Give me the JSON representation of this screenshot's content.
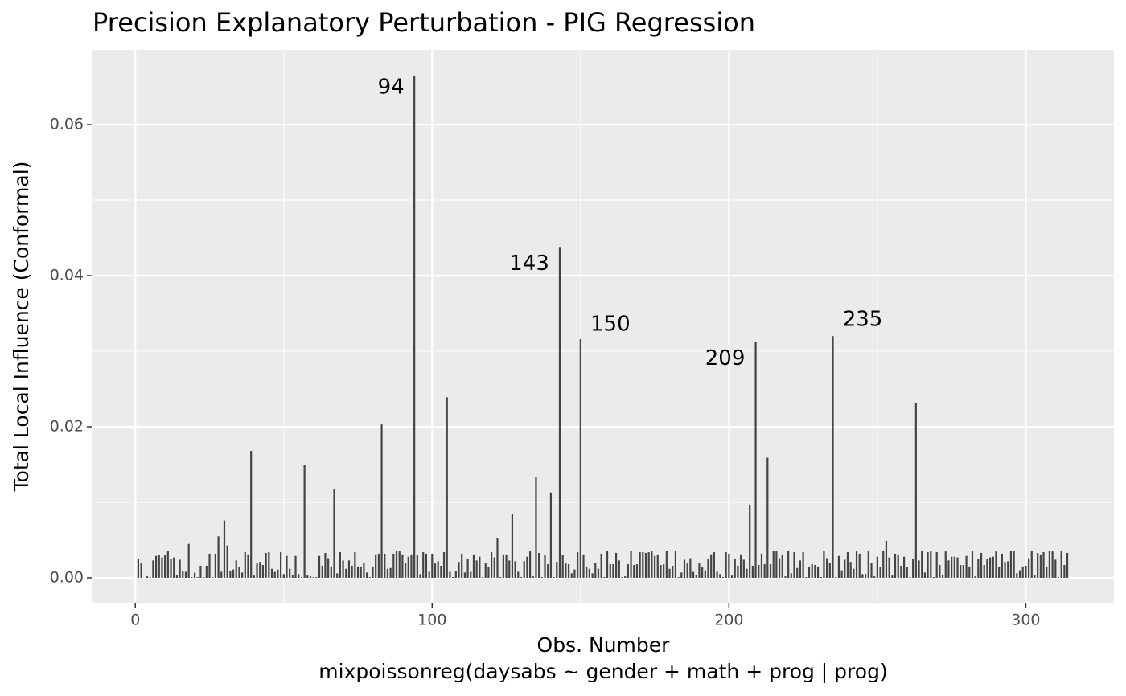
{
  "chart_data": {
    "type": "bar",
    "title": "Precision Explanatory Perturbation - PIG Regression",
    "xlabel": "Obs. Number",
    "caption": "mixpoissonreg(daysabs ~ gender + math + prog | prog)",
    "ylabel": "Total Local Influence (Conformal)",
    "color": "#444444",
    "grid": true,
    "xlim": [
      -14.7,
      329.7
    ],
    "ylim": [
      -0.0033,
      0.0699
    ],
    "xticks": [
      0,
      100,
      200,
      300
    ],
    "yticks": [
      {
        "value": 0,
        "label": "0.00"
      },
      {
        "value": 0.02,
        "label": "0.02"
      },
      {
        "value": 0.04,
        "label": "0.04"
      },
      {
        "value": 0.06,
        "label": "0.06"
      }
    ],
    "xminor_ticks": [
      50,
      150,
      250
    ],
    "yminor_ticks": [
      0.01,
      0.03,
      0.05
    ],
    "annotations": [
      {
        "x": 94,
        "text": "94"
      },
      {
        "x": 143,
        "text": "143"
      },
      {
        "x": 150,
        "text": "150"
      },
      {
        "x": 209,
        "text": "209"
      },
      {
        "x": 235,
        "text": "235"
      }
    ],
    "x": [
      1,
      2,
      3,
      4,
      5,
      6,
      7,
      8,
      9,
      10,
      11,
      12,
      13,
      14,
      15,
      16,
      17,
      18,
      19,
      20,
      21,
      22,
      23,
      24,
      25,
      26,
      27,
      28,
      29,
      30,
      31,
      32,
      33,
      34,
      35,
      36,
      37,
      38,
      39,
      40,
      41,
      42,
      43,
      44,
      45,
      46,
      47,
      48,
      49,
      50,
      51,
      52,
      53,
      54,
      55,
      56,
      57,
      58,
      59,
      60,
      61,
      62,
      63,
      64,
      65,
      66,
      67,
      68,
      69,
      70,
      71,
      72,
      73,
      74,
      75,
      76,
      77,
      78,
      79,
      80,
      81,
      82,
      83,
      84,
      85,
      86,
      87,
      88,
      89,
      90,
      91,
      92,
      93,
      94,
      95,
      96,
      97,
      98,
      99,
      100,
      101,
      102,
      103,
      104,
      105,
      106,
      107,
      108,
      109,
      110,
      111,
      112,
      113,
      114,
      115,
      116,
      117,
      118,
      119,
      120,
      121,
      122,
      123,
      124,
      125,
      126,
      127,
      128,
      129,
      130,
      131,
      132,
      133,
      134,
      135,
      136,
      137,
      138,
      139,
      140,
      141,
      142,
      143,
      144,
      145,
      146,
      147,
      148,
      149,
      150,
      151,
      152,
      153,
      154,
      155,
      156,
      157,
      158,
      159,
      160,
      161,
      162,
      163,
      164,
      165,
      166,
      167,
      168,
      169,
      170,
      171,
      172,
      173,
      174,
      175,
      176,
      177,
      178,
      179,
      180,
      181,
      182,
      183,
      184,
      185,
      186,
      187,
      188,
      189,
      190,
      191,
      192,
      193,
      194,
      195,
      196,
      197,
      198,
      199,
      200,
      201,
      202,
      203,
      204,
      205,
      206,
      207,
      208,
      209,
      210,
      211,
      212,
      213,
      214,
      215,
      216,
      217,
      218,
      219,
      220,
      221,
      222,
      223,
      224,
      225,
      226,
      227,
      228,
      229,
      230,
      231,
      232,
      233,
      234,
      235,
      236,
      237,
      238,
      239,
      240,
      241,
      242,
      243,
      244,
      245,
      246,
      247,
      248,
      249,
      250,
      251,
      252,
      253,
      254,
      255,
      256,
      257,
      258,
      259,
      260,
      261,
      262,
      263,
      264,
      265,
      266,
      267,
      268,
      269,
      270,
      271,
      272,
      273,
      274,
      275,
      276,
      277,
      278,
      279,
      280,
      281,
      282,
      283,
      284,
      285,
      286,
      287,
      288,
      289,
      290,
      291,
      292,
      293,
      294,
      295,
      296,
      297,
      298,
      299,
      300,
      301,
      302,
      303,
      304,
      305,
      306,
      307,
      308,
      309,
      310,
      311,
      312,
      313,
      314
    ],
    "values": [
      0.0025,
      0.0019,
      0,
      0.0002,
      0.0001,
      0.0023,
      0.0029,
      0.003,
      0.0027,
      0.003,
      0.0036,
      0.0025,
      0.0027,
      0.0004,
      0.0024,
      0.0009,
      0.0008,
      0.0045,
      0.0001,
      0.0007,
      0.0001,
      0.0016,
      0.0001,
      0.0016,
      0.0032,
      0.0001,
      0.0032,
      0.0055,
      0.0008,
      0.0076,
      0.0043,
      0.0009,
      0.0011,
      0.0023,
      0.0014,
      0.0007,
      0.0034,
      0.0031,
      0.0168,
      0.0003,
      0.0019,
      0.0021,
      0.0017,
      0.0033,
      0.0034,
      0.0012,
      0.0008,
      0.0011,
      0.0034,
      0.0005,
      0.0029,
      0.0012,
      0.0004,
      0.0029,
      0.0005,
      0.0001,
      0.015,
      0.0003,
      0.0002,
      0.0001,
      0.0001,
      0.0029,
      0.0016,
      0.0033,
      0.0026,
      0.0015,
      0.0117,
      0.0006,
      0.0034,
      0.0023,
      0.0012,
      0.0023,
      0.0016,
      0.0034,
      0.0015,
      0.0015,
      0.002,
      0.0007,
      0.0001,
      0.0015,
      0.0031,
      0.0032,
      0.0203,
      0.0032,
      0.0012,
      0.0013,
      0.0032,
      0.0035,
      0.0035,
      0.0031,
      0.002,
      0.0028,
      0.0031,
      0.0665,
      0.003,
      0.0005,
      0.0034,
      0.0032,
      0.0008,
      0.0032,
      0.0019,
      0.0022,
      0.0016,
      0.0034,
      0.0239,
      0.0008,
      0.0001,
      0.0009,
      0.0021,
      0.0032,
      0.0007,
      0.0025,
      0.0008,
      0.0031,
      0.0023,
      0.0028,
      0.0001,
      0.002,
      0.0014,
      0.0034,
      0.0027,
      0.0053,
      0.0001,
      0.0031,
      0.0031,
      0.0023,
      0.0084,
      0.0022,
      0.0008,
      0.0001,
      0.0022,
      0.0028,
      0.0035,
      0.0002,
      0.0133,
      0.0033,
      0.0001,
      0.003,
      0.0018,
      0.0113,
      0.0001,
      0.0021,
      0.0438,
      0.003,
      0.0019,
      0.0018,
      0.0006,
      0.0011,
      0.0034,
      0.0316,
      0.0031,
      0.0015,
      0.0012,
      0.0006,
      0.002,
      0.0012,
      0.0032,
      0.0001,
      0.0036,
      0.0018,
      0.0018,
      0.0033,
      0.0023,
      0.0001,
      0.0002,
      0.0018,
      0.0036,
      0.0017,
      0.0018,
      0.0034,
      0.0034,
      0.0033,
      0.0034,
      0.0035,
      0.0029,
      0.0031,
      0.0017,
      0.0018,
      0.0036,
      0.0012,
      0.0016,
      0.0036,
      0.0001,
      0.0007,
      0.0024,
      0.0019,
      0.0026,
      0.0008,
      0.0004,
      0.0019,
      0.0014,
      0.001,
      0.0025,
      0.0031,
      0.0034,
      0.0008,
      0.0005,
      0.0001,
      0.0034,
      0.0032,
      0.0003,
      0.0025,
      0.0016,
      0.0031,
      0.0024,
      0.0012,
      0.0097,
      0.0016,
      0.0312,
      0.0017,
      0.0032,
      0.0018,
      0.0159,
      0.0018,
      0.0036,
      0.0036,
      0.0026,
      0.0031,
      0.0002,
      0.0036,
      0.0006,
      0.0034,
      0.0013,
      0.0023,
      0.0034,
      0.0001,
      0.0015,
      0.0018,
      0.0017,
      0.0015,
      0.0001,
      0.0036,
      0.0026,
      0.002,
      0.032,
      0.0001,
      0.0029,
      0.001,
      0.0024,
      0.0034,
      0.0021,
      0.0012,
      0.0035,
      0.0032,
      0.0005,
      0.0005,
      0.0035,
      0.002,
      0.0002,
      0.0028,
      0.0014,
      0.0036,
      0.0049,
      0.0027,
      0.0003,
      0.0032,
      0.0031,
      0.0016,
      0.0028,
      0.0014,
      0.0001,
      0.0025,
      0.0231,
      0.0023,
      0.0036,
      0.0007,
      0.0034,
      0.0035,
      0.0001,
      0.0034,
      0.0017,
      0.0004,
      0.0035,
      0.0023,
      0.0028,
      0.0028,
      0.0027,
      0.0017,
      0.0017,
      0.0029,
      0.0015,
      0.0035,
      0.0002,
      0.0025,
      0.0033,
      0.0017,
      0.0025,
      0.0027,
      0.0028,
      0.0035,
      0.0015,
      0.0032,
      0.0021,
      0.0022,
      0.0036,
      0.0036,
      0.0006,
      0.001,
      0.0015,
      0.0016,
      0.0026,
      0.0036,
      0.0004,
      0.0033,
      0.0031,
      0.0034,
      0.0015,
      0.0036,
      0.0035,
      0.0024,
      0.0001,
      0.0036,
      0.0017,
      0.0033
    ]
  }
}
